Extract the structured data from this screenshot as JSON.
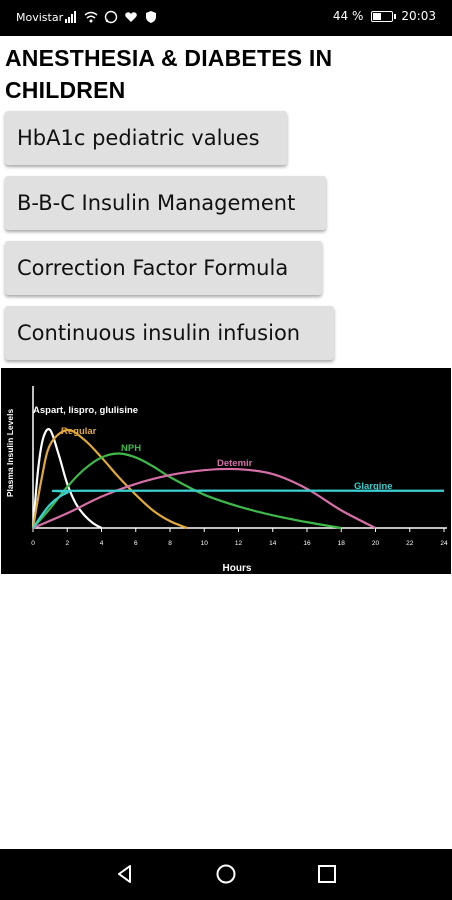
{
  "status_bar": {
    "carrier": "Movistar",
    "battery_percent": "44 %",
    "battery_level": 0.44,
    "time": "20:03"
  },
  "header": {
    "title": "ANESTHESIA & DIABETES IN CHILDREN"
  },
  "buttons": [
    {
      "label": "HbA1c pediatric values"
    },
    {
      "label": "B-B-C Insulin Management"
    },
    {
      "label": "Correction Factor Formula"
    },
    {
      "label": "Continuous insulin infusion"
    }
  ],
  "chart_data": {
    "type": "line",
    "xlabel": "Hours",
    "ylabel": "Plasma Insulin Levels",
    "xlim": [
      0,
      24
    ],
    "ylim": [
      0,
      100
    ],
    "x_ticks": [
      0,
      2,
      4,
      6,
      8,
      10,
      12,
      14,
      16,
      18,
      20,
      22,
      24
    ],
    "x_tick_labels": [
      "0",
      "2",
      "4",
      "6",
      "8",
      "10",
      "12",
      "14",
      "16",
      "18",
      "20",
      "22",
      "24"
    ],
    "grid": false,
    "background": "#000000",
    "series": [
      {
        "name": "Aspart, lispro, glulisine",
        "color": "#ffffff",
        "x": [
          0,
          0.3,
          0.6,
          1,
          1.5,
          2,
          2.5,
          3,
          3.5,
          4
        ],
        "y": [
          0,
          60,
          92,
          100,
          75,
          45,
          25,
          13,
          5,
          0
        ]
      },
      {
        "name": "Regular",
        "color": "#e1a83a",
        "x": [
          0,
          0.5,
          1,
          2,
          3,
          4,
          5,
          6,
          7,
          8,
          9
        ],
        "y": [
          0,
          50,
          85,
          100,
          90,
          72,
          52,
          34,
          18,
          7,
          0
        ]
      },
      {
        "name": "NPH",
        "color": "#3fb84a",
        "x": [
          0,
          1,
          2,
          3,
          4,
          5,
          6,
          7,
          8,
          10,
          12,
          14,
          16,
          18
        ],
        "y": [
          0,
          20,
          42,
          60,
          72,
          76,
          72,
          63,
          52,
          34,
          22,
          13,
          6,
          0
        ]
      },
      {
        "name": "Detemir",
        "color": "#d66fa8",
        "x": [
          0,
          2,
          4,
          6,
          8,
          10,
          12,
          14,
          16,
          18,
          20
        ],
        "y": [
          0,
          15,
          32,
          45,
          54,
          59,
          60,
          55,
          40,
          18,
          0
        ]
      },
      {
        "name": "Glargine",
        "color": "#3ccfd0",
        "x": [
          0,
          1,
          2,
          3,
          24
        ],
        "y": [
          0,
          24,
          36,
          38,
          38
        ]
      }
    ]
  },
  "nav_bar": {
    "back": "back-icon",
    "home": "home-icon",
    "recents": "recents-icon"
  }
}
